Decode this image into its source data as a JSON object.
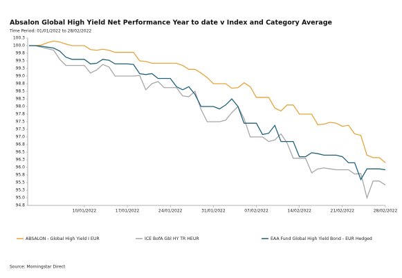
{
  "chart_data": {
    "type": "line",
    "title": "Absalon Global High Yield Net Performance Year to date v Index and Category Average",
    "subtitle": "Time Period: 01/01/2022 to 28/02/2022",
    "source": "Source: Morningstar Direct",
    "categories": [
      null,
      null,
      null,
      null,
      null,
      null,
      null,
      null,
      null,
      "10/01/2022",
      null,
      null,
      null,
      null,
      null,
      null,
      "17/01/2022",
      null,
      null,
      null,
      null,
      null,
      null,
      "24/01/2022",
      null,
      null,
      null,
      null,
      null,
      null,
      "31/01/2022",
      null,
      null,
      null,
      null,
      null,
      null,
      "07/02/2022",
      null,
      null,
      null,
      null,
      null,
      null,
      "14/02/2022",
      null,
      null,
      null,
      null,
      null,
      null,
      "21/02/2022",
      null,
      null,
      null,
      null,
      null,
      null,
      "28/02/2022"
    ],
    "series": [
      {
        "name": "ABSALON - Global High Yield I EUR",
        "color": "#e8a33a",
        "values": [
          100,
          100,
          100.02,
          100.1,
          100.15,
          100.12,
          100.05,
          100,
          100,
          100,
          99.87,
          99.85,
          99.88,
          99.85,
          99.78,
          99.78,
          99.78,
          99.78,
          99.5,
          99.48,
          99.42,
          99.42,
          99.42,
          99.42,
          99.42,
          99.35,
          99.22,
          99.22,
          99.1,
          98.95,
          98.75,
          98.75,
          98.75,
          98.6,
          98.62,
          98.78,
          98.65,
          98.3,
          98.3,
          98.3,
          97.95,
          97.85,
          98.05,
          98.05,
          97.75,
          97.75,
          97.75,
          97.4,
          97.42,
          97.48,
          97.45,
          97.35,
          97.38,
          97.1,
          97.05,
          96.4,
          96.32,
          96.32,
          96.15
        ]
      },
      {
        "name": "ICE BofA Gbl HY TR HEUR",
        "color": "#a6a6a6",
        "values": [
          100,
          100,
          99.95,
          99.9,
          99.85,
          99.55,
          99.35,
          99.35,
          99.35,
          99.35,
          99.1,
          99.2,
          99.38,
          99.3,
          99.0,
          99.0,
          99.0,
          99.0,
          99.02,
          98.55,
          98.75,
          98.82,
          98.62,
          98.62,
          98.62,
          98.35,
          98.32,
          98.5,
          97.9,
          97.5,
          97.5,
          97.5,
          97.55,
          97.8,
          98.0,
          97.6,
          97.0,
          97.0,
          97.0,
          96.85,
          96.9,
          97.1,
          96.8,
          96.3,
          96.3,
          96.3,
          95.82,
          95.95,
          95.98,
          95.95,
          95.92,
          95.92,
          95.92,
          95.78,
          95.8,
          95.0,
          95.55,
          95.55,
          95.42
        ]
      },
      {
        "name": "EAA Fund Global High Yield Bond - EUR Hedged",
        "color": "#1f5f7a",
        "values": [
          100,
          100,
          99.98,
          99.95,
          99.92,
          99.82,
          99.62,
          99.55,
          99.55,
          99.55,
          99.4,
          99.42,
          99.55,
          99.52,
          99.4,
          99.4,
          99.4,
          99.38,
          99.08,
          99.05,
          99.08,
          98.92,
          98.92,
          98.92,
          98.65,
          98.55,
          98.65,
          98.4,
          98.0,
          98.0,
          98.0,
          97.92,
          98.05,
          98.25,
          98.0,
          97.45,
          97.45,
          97.45,
          97.08,
          97.12,
          97.38,
          96.85,
          96.85,
          96.85,
          96.35,
          96.35,
          96.48,
          96.45,
          96.4,
          96.4,
          96.4,
          96.35,
          96.15,
          96.15,
          95.6,
          95.95,
          95.95,
          95.95,
          95.92
        ]
      }
    ],
    "ylim": [
      94.75,
      100.25
    ],
    "yticks": [
      {
        "value": 94.75,
        "label": "94.8"
      },
      {
        "value": 95,
        "label": "95.0"
      },
      {
        "value": 95.25,
        "label": "95.3"
      },
      {
        "value": 95.5,
        "label": "95.5"
      },
      {
        "value": 95.75,
        "label": "95.8"
      },
      {
        "value": 96,
        "label": "96.0"
      },
      {
        "value": 96.25,
        "label": "96.3"
      },
      {
        "value": 96.5,
        "label": "96.5"
      },
      {
        "value": 96.75,
        "label": "96.8"
      },
      {
        "value": 97,
        "label": "97.0"
      },
      {
        "value": 97.25,
        "label": "97.3"
      },
      {
        "value": 97.5,
        "label": "97.5"
      },
      {
        "value": 97.75,
        "label": "97.8"
      },
      {
        "value": 98,
        "label": "98.0"
      },
      {
        "value": 98.25,
        "label": "98.3"
      },
      {
        "value": 98.5,
        "label": "98.5"
      },
      {
        "value": 98.75,
        "label": "98.8"
      },
      {
        "value": 99,
        "label": "99.0"
      },
      {
        "value": 99.25,
        "label": "99.3"
      },
      {
        "value": 99.5,
        "label": "99.5"
      },
      {
        "value": 99.75,
        "label": "99.8"
      },
      {
        "value": 100,
        "label": "100.0"
      },
      {
        "value": 100.25,
        "label": "100.3"
      }
    ],
    "grid": false,
    "legend": "bottom"
  }
}
